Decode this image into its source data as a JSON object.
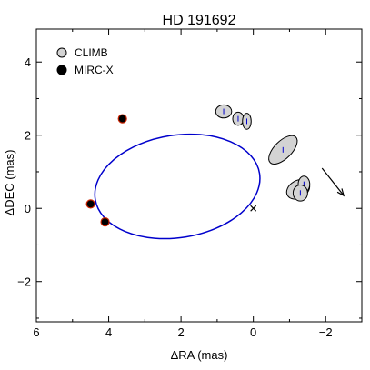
{
  "chart_data": {
    "type": "scatter",
    "title": "HD 191692",
    "xlabel": "ΔRA (mas)",
    "ylabel": "ΔDEC (mas)",
    "xlim": [
      6,
      -3
    ],
    "ylim": [
      -3.1,
      4.9
    ],
    "x_ticks": [
      6,
      4,
      2,
      0,
      -2
    ],
    "y_ticks": [
      4,
      2,
      0,
      -2
    ],
    "grid": false,
    "legend_position": "top-left",
    "legend": [
      {
        "label": "CLIMB",
        "color": "#d3d3d3"
      },
      {
        "label": "MIRC-X",
        "color": "#000000"
      }
    ],
    "orbit": {
      "center": [
        2.1,
        0.6
      ],
      "semi_axes": [
        2.3,
        1.4
      ],
      "rotation_deg": 9,
      "color": "#0000cc"
    },
    "primary_star": {
      "x": 0,
      "y": 0,
      "marker": "x"
    },
    "series": [
      {
        "name": "CLIMB",
        "marker_color": "#d3d3d3",
        "points": [
          {
            "x": 0.82,
            "y": 2.65,
            "rx": 0.22,
            "ry": 0.18,
            "angle": 0
          },
          {
            "x": 0.42,
            "y": 2.45,
            "rx": 0.15,
            "ry": 0.18,
            "angle": 0
          },
          {
            "x": 0.18,
            "y": 2.38,
            "rx": 0.12,
            "ry": 0.22,
            "angle": 0
          },
          {
            "x": -0.82,
            "y": 1.6,
            "rx": 0.5,
            "ry": 0.24,
            "angle": -45
          },
          {
            "x": -1.24,
            "y": 0.52,
            "rx": 0.34,
            "ry": 0.24,
            "angle": -30
          },
          {
            "x": -1.4,
            "y": 0.66,
            "rx": 0.16,
            "ry": 0.22,
            "angle": 0
          },
          {
            "x": -1.3,
            "y": 0.42,
            "rx": 0.2,
            "ry": 0.22,
            "angle": 0
          }
        ]
      },
      {
        "name": "MIRC-X",
        "marker_color": "#000000",
        "points": [
          {
            "x": 3.62,
            "y": 2.45
          },
          {
            "x": 4.5,
            "y": 0.12
          },
          {
            "x": 4.1,
            "y": -0.37
          }
        ]
      }
    ],
    "direction_arrow": {
      "from": [
        -1.9,
        1.1
      ],
      "to": [
        -2.5,
        0.35
      ]
    }
  }
}
